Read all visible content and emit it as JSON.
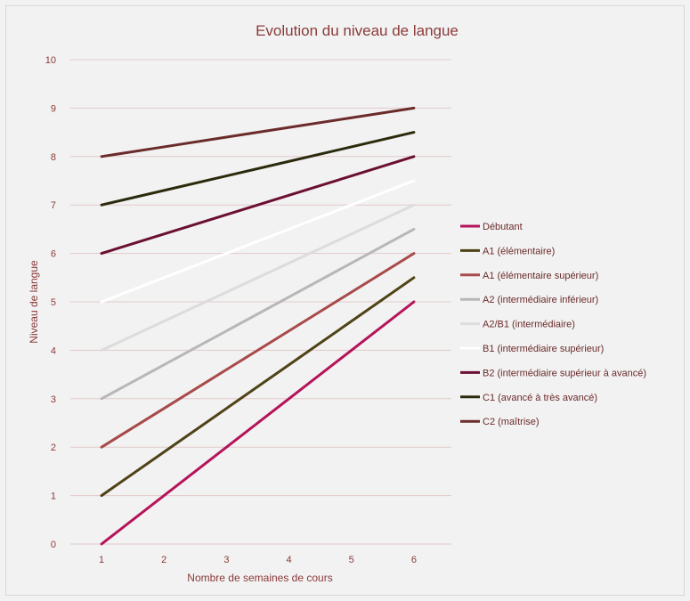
{
  "chart_data": {
    "type": "line",
    "title": "Evolution du niveau de langue",
    "xlabel": "Nombre de semaines de cours",
    "ylabel": "Niveau de langue",
    "x": [
      1,
      2,
      3,
      4,
      5,
      6
    ],
    "x_ticks": [
      "1",
      "2",
      "3",
      "4",
      "5",
      "6"
    ],
    "y_ticks": [
      "0",
      "1",
      "2",
      "3",
      "4",
      "5",
      "6",
      "7",
      "8",
      "9",
      "10"
    ],
    "ylim": [
      0,
      10
    ],
    "grid": "horizontal",
    "legend_position": "right",
    "series": [
      {
        "name": "Débutant",
        "color": "#b5135a",
        "values": [
          0,
          1,
          2,
          3,
          4,
          5
        ]
      },
      {
        "name": "A1 (élémentaire)",
        "color": "#4f4316",
        "values": [
          1,
          1.9,
          2.8,
          3.7,
          4.6,
          5.5
        ]
      },
      {
        "name": "A1 (élémentaire supérieur)",
        "color": "#a84a4a",
        "values": [
          2,
          2.8,
          3.6,
          4.4,
          5.2,
          6
        ]
      },
      {
        "name": "A2 (intermédiaire inférieur)",
        "color": "#b7b7b7",
        "values": [
          3,
          3.7,
          4.4,
          5.1,
          5.8,
          6.5
        ]
      },
      {
        "name": "A2/B1 (intermédiaire)",
        "color": "#dcdcdc",
        "values": [
          4,
          4.6,
          5.2,
          5.8,
          6.4,
          7
        ]
      },
      {
        "name": "B1 (intermédiaire supérieur)",
        "color": "#ffffff",
        "values": [
          5,
          5.5,
          6,
          6.5,
          7,
          7.5
        ]
      },
      {
        "name": "B2 (intermédiaire supérieur à avancé)",
        "color": "#6b0f33",
        "values": [
          6,
          6.4,
          6.8,
          7.2,
          7.6,
          8
        ]
      },
      {
        "name": "C1 (avancé à très avancé)",
        "color": "#2c2a0c",
        "values": [
          7,
          7.3,
          7.6,
          7.9,
          8.2,
          8.5
        ]
      },
      {
        "name": "C2 (maîtrise)",
        "color": "#6b2b2b",
        "values": [
          8,
          8.2,
          8.4,
          8.6,
          8.8,
          9
        ]
      }
    ],
    "colors": {
      "text": "#8b3a3a",
      "grid": "#e2c9c9",
      "background": "#f2f2f2"
    }
  }
}
